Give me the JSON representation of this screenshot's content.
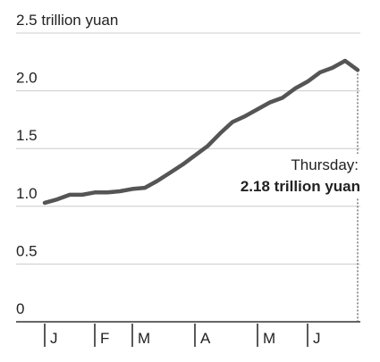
{
  "chart_data": {
    "type": "line",
    "categories": [
      "J",
      null,
      null,
      null,
      "F",
      null,
      null,
      "M",
      null,
      null,
      null,
      null,
      "A",
      null,
      null,
      null,
      null,
      "M",
      null,
      null,
      null,
      "J",
      null,
      null,
      null,
      null
    ],
    "series": [
      {
        "color": "#555555",
        "values": [
          1.03,
          1.06,
          1.1,
          1.1,
          1.12,
          1.12,
          1.13,
          1.15,
          1.16,
          1.22,
          1.29,
          1.36,
          1.44,
          1.52,
          1.63,
          1.73,
          1.78,
          1.84,
          1.9,
          1.94,
          2.02,
          2.08,
          2.16,
          2.2,
          2.26,
          2.18
        ]
      }
    ],
    "ylim": [
      0,
      2.5
    ],
    "yticks": [
      0,
      0.5,
      {
        "value": 1,
        "label": "1.0"
      },
      1.5,
      {
        "value": 2,
        "label": "2.0"
      },
      {
        "value": 2.5,
        "label": "2.5 trillion yuan"
      }
    ],
    "grid": true,
    "annotation": {
      "label": "Thursday:",
      "text": "2.18 trillion yuan"
    }
  }
}
